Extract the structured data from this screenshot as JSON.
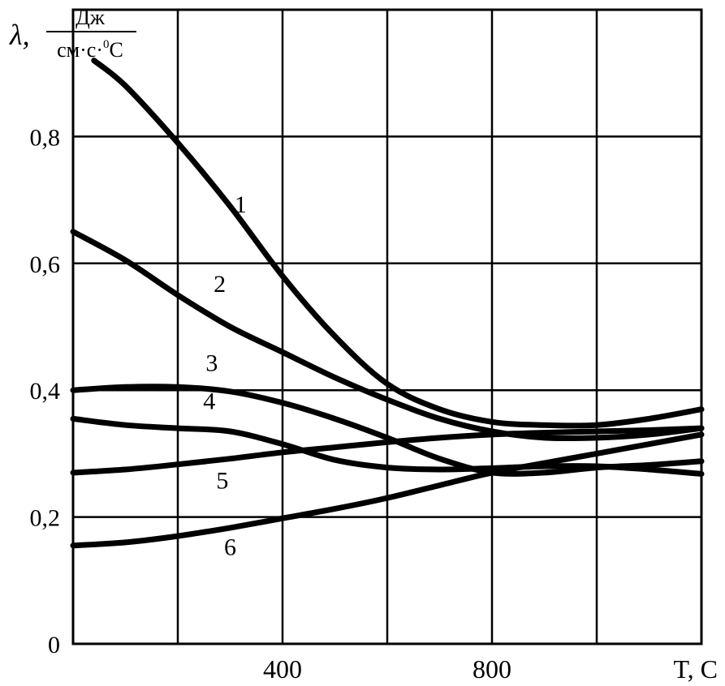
{
  "chart_data": {
    "type": "line",
    "ylabel": {
      "symbol": "λ,",
      "unit_numerator": "Дж",
      "unit_denominator_base": "см·с·",
      "unit_denominator_sup": "0",
      "unit_denominator_end": "С"
    },
    "xlabel": "T, C",
    "xlim": [
      0,
      1200
    ],
    "ylim": [
      0,
      1.0
    ],
    "x_ticks": [
      400,
      800
    ],
    "y_ticks": [
      {
        "value": 0,
        "label": "0"
      },
      {
        "value": 0.2,
        "label": "0,2"
      },
      {
        "value": 0.4,
        "label": "0,4"
      },
      {
        "value": 0.6,
        "label": "0,6"
      },
      {
        "value": 0.8,
        "label": "0,8"
      }
    ],
    "grid": true,
    "series": [
      {
        "name": "1",
        "label_at": [
          320,
          0.68
        ],
        "points": [
          [
            40,
            0.92
          ],
          [
            100,
            0.88
          ],
          [
            200,
            0.79
          ],
          [
            300,
            0.69
          ],
          [
            400,
            0.58
          ],
          [
            500,
            0.485
          ],
          [
            600,
            0.41
          ],
          [
            700,
            0.37
          ],
          [
            800,
            0.35
          ],
          [
            900,
            0.345
          ],
          [
            1000,
            0.345
          ],
          [
            1100,
            0.355
          ],
          [
            1200,
            0.37
          ]
        ]
      },
      {
        "name": "2",
        "label_at": [
          280,
          0.555
        ],
        "points": [
          [
            0,
            0.65
          ],
          [
            100,
            0.605
          ],
          [
            200,
            0.55
          ],
          [
            300,
            0.5
          ],
          [
            400,
            0.46
          ],
          [
            500,
            0.42
          ],
          [
            600,
            0.385
          ],
          [
            700,
            0.355
          ],
          [
            800,
            0.335
          ],
          [
            900,
            0.325
          ],
          [
            1000,
            0.325
          ],
          [
            1100,
            0.33
          ],
          [
            1200,
            0.34
          ]
        ]
      },
      {
        "name": "3",
        "label_at": [
          265,
          0.43
        ],
        "points": [
          [
            0,
            0.4
          ],
          [
            100,
            0.405
          ],
          [
            200,
            0.405
          ],
          [
            300,
            0.398
          ],
          [
            400,
            0.38
          ],
          [
            500,
            0.355
          ],
          [
            600,
            0.325
          ],
          [
            700,
            0.292
          ],
          [
            800,
            0.27
          ],
          [
            900,
            0.27
          ],
          [
            1000,
            0.278
          ],
          [
            1100,
            0.282
          ],
          [
            1200,
            0.288
          ]
        ]
      },
      {
        "name": "4",
        "label_at": [
          260,
          0.37
        ],
        "points": [
          [
            0,
            0.355
          ],
          [
            100,
            0.345
          ],
          [
            200,
            0.34
          ],
          [
            300,
            0.335
          ],
          [
            400,
            0.315
          ],
          [
            500,
            0.29
          ],
          [
            600,
            0.278
          ],
          [
            700,
            0.275
          ],
          [
            800,
            0.277
          ],
          [
            900,
            0.28
          ],
          [
            1000,
            0.28
          ],
          [
            1100,
            0.275
          ],
          [
            1200,
            0.268
          ]
        ]
      },
      {
        "name": "5",
        "label_at": [
          285,
          0.245
        ],
        "points": [
          [
            0,
            0.27
          ],
          [
            100,
            0.275
          ],
          [
            200,
            0.283
          ],
          [
            300,
            0.292
          ],
          [
            400,
            0.302
          ],
          [
            500,
            0.31
          ],
          [
            600,
            0.318
          ],
          [
            700,
            0.325
          ],
          [
            800,
            0.33
          ],
          [
            900,
            0.333
          ],
          [
            1000,
            0.335
          ],
          [
            1100,
            0.337
          ],
          [
            1200,
            0.34
          ]
        ]
      },
      {
        "name": "6",
        "label_at": [
          300,
          0.14
        ],
        "points": [
          [
            0,
            0.155
          ],
          [
            100,
            0.16
          ],
          [
            200,
            0.17
          ],
          [
            300,
            0.183
          ],
          [
            400,
            0.198
          ],
          [
            500,
            0.213
          ],
          [
            600,
            0.23
          ],
          [
            700,
            0.25
          ],
          [
            800,
            0.27
          ],
          [
            900,
            0.285
          ],
          [
            1000,
            0.3
          ],
          [
            1100,
            0.315
          ],
          [
            1200,
            0.33
          ]
        ]
      }
    ]
  }
}
